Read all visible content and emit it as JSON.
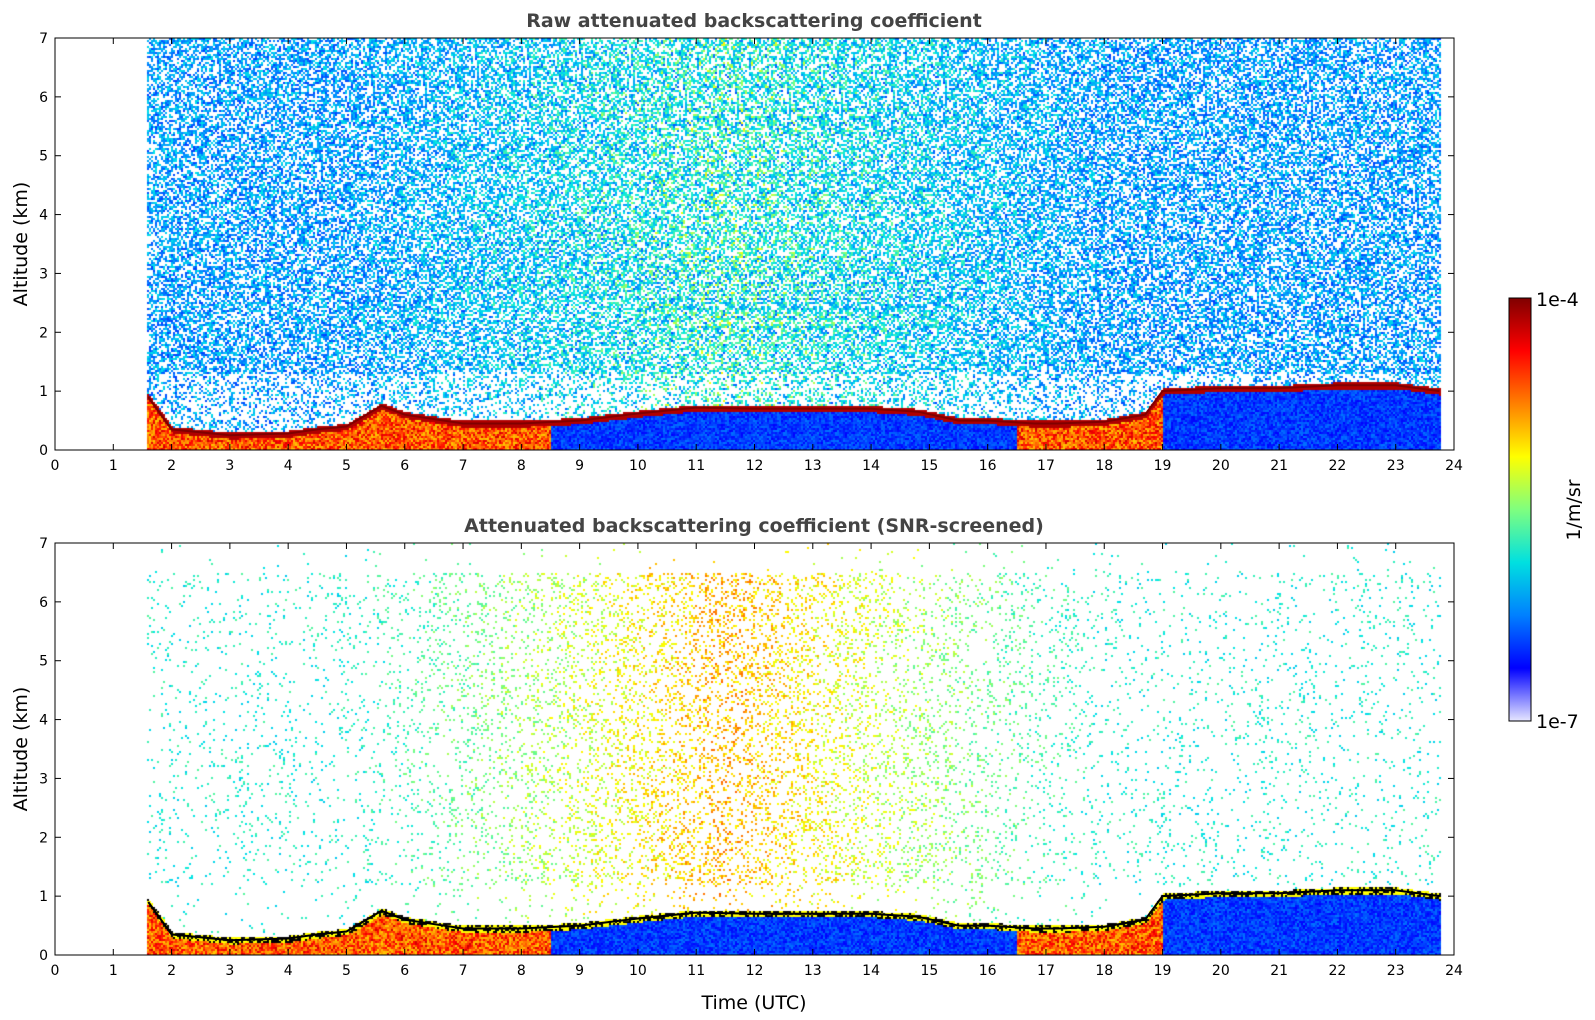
{
  "chart_data": [
    {
      "type": "heatmap",
      "title": "Raw attenuated backscattering coefficient",
      "xlabel": "",
      "ylabel": "Altitude (km)",
      "xlim": [
        0,
        24
      ],
      "ylim": [
        0,
        7
      ],
      "x_ticks": [
        "0",
        "1",
        "2",
        "3",
        "4",
        "5",
        "6",
        "7",
        "8",
        "9",
        "10",
        "11",
        "12",
        "13",
        "14",
        "15",
        "16",
        "17",
        "18",
        "19",
        "20",
        "21",
        "22",
        "23",
        "24"
      ],
      "y_ticks": [
        "0",
        "1",
        "2",
        "3",
        "4",
        "5",
        "6",
        "7"
      ],
      "data_time_range": [
        1.55,
        23.75
      ],
      "boundary_layer_top_km": {
        "time": [
          1.6,
          2.0,
          3.0,
          4.0,
          4.5,
          5.0,
          5.6,
          6.0,
          7.0,
          8.0,
          9.0,
          10.0,
          11.0,
          12.0,
          13.0,
          14.0,
          14.8,
          15.5,
          16.0,
          16.8,
          17.2,
          18.0,
          18.7,
          19.0,
          20.0,
          21.0,
          22.0,
          23.0,
          23.75
        ],
        "height": [
          0.9,
          0.35,
          0.25,
          0.28,
          0.35,
          0.4,
          0.75,
          0.6,
          0.45,
          0.45,
          0.5,
          0.62,
          0.72,
          0.7,
          0.7,
          0.7,
          0.65,
          0.5,
          0.5,
          0.45,
          0.45,
          0.48,
          0.6,
          1.0,
          1.05,
          1.05,
          1.1,
          1.1,
          1.0
        ]
      },
      "colorbar": {
        "min_label": "1e-7",
        "max_label": "1e-4",
        "unit": "1/m/sr"
      }
    },
    {
      "type": "heatmap",
      "title": "Attenuated backscattering coefficient (SNR-screened)",
      "xlabel": "Time (UTC)",
      "ylabel": "Altitude (km)",
      "xlim": [
        0,
        24
      ],
      "ylim": [
        0,
        7
      ],
      "x_ticks": [
        "0",
        "1",
        "2",
        "3",
        "4",
        "5",
        "6",
        "7",
        "8",
        "9",
        "10",
        "11",
        "12",
        "13",
        "14",
        "15",
        "16",
        "17",
        "18",
        "19",
        "20",
        "21",
        "22",
        "23",
        "24"
      ],
      "y_ticks": [
        "0",
        "1",
        "2",
        "3",
        "4",
        "5",
        "6",
        "7"
      ],
      "data_time_range": [
        1.55,
        23.75
      ],
      "boundary_layer_top_km": {
        "time": [
          1.6,
          2.0,
          3.0,
          4.0,
          4.5,
          5.0,
          5.6,
          6.0,
          7.0,
          8.0,
          9.0,
          10.0,
          11.0,
          12.0,
          13.0,
          14.0,
          14.8,
          15.5,
          16.0,
          16.8,
          17.2,
          18.0,
          18.7,
          19.0,
          20.0,
          21.0,
          22.0,
          23.0,
          23.75
        ],
        "height": [
          0.9,
          0.35,
          0.25,
          0.28,
          0.35,
          0.4,
          0.75,
          0.6,
          0.45,
          0.45,
          0.5,
          0.62,
          0.72,
          0.7,
          0.7,
          0.7,
          0.65,
          0.5,
          0.5,
          0.45,
          0.45,
          0.48,
          0.6,
          1.0,
          1.05,
          1.05,
          1.1,
          1.1,
          1.0
        ]
      },
      "colorbar": {
        "min_label": "1e-7",
        "max_label": "1e-4",
        "unit": "1/m/sr"
      }
    }
  ],
  "colorbar": {
    "max_label": "1e-4",
    "min_label": "1e-7",
    "unit_label": "1/m/sr",
    "colormap": "jet",
    "colors": [
      "#e6e6ff",
      "#0000ff",
      "#0080ff",
      "#00e0e0",
      "#7fff7f",
      "#ffff00",
      "#ff8000",
      "#ff0000",
      "#800000"
    ]
  }
}
